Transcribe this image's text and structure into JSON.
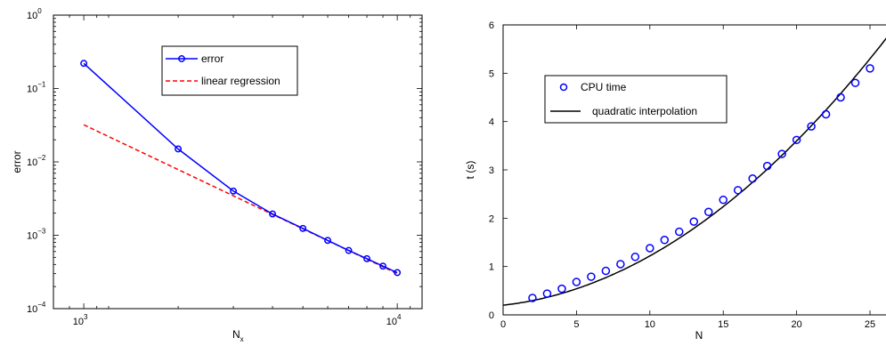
{
  "chart_data": [
    {
      "type": "line",
      "xscale": "log",
      "yscale": "log",
      "xlim": [
        800,
        12000
      ],
      "ylim": [
        0.0001,
        1
      ],
      "xticks": [
        {
          "value": 1000,
          "base": "10",
          "exp": "3"
        },
        {
          "value": 10000,
          "base": "10",
          "exp": "4"
        }
      ],
      "yticks": [
        {
          "value": 0.0001,
          "base": "10",
          "exp": "−4"
        },
        {
          "value": 0.001,
          "base": "10",
          "exp": "−3"
        },
        {
          "value": 0.01,
          "base": "10",
          "exp": "−2"
        },
        {
          "value": 0.1,
          "base": "10",
          "exp": "−1"
        },
        {
          "value": 1,
          "base": "10",
          "exp": "0"
        }
      ],
      "xlabel": {
        "main": "N",
        "sub": "x"
      },
      "ylabel": "error",
      "grid": false,
      "legend": {
        "placement": "top-center"
      },
      "series": [
        {
          "name": "error",
          "color": "#0000ff",
          "style": "solid-circle-markers",
          "x": [
            1000,
            2000,
            3000,
            4000,
            5000,
            6000,
            7000,
            8000,
            9000,
            10000
          ],
          "y": [
            0.22,
            0.015,
            0.004,
            0.00195,
            0.00124,
            0.00085,
            0.00062,
            0.00048,
            0.00038,
            0.00031
          ]
        },
        {
          "name": "linear regression",
          "color": "#ff0000",
          "style": "dashed",
          "x": [
            1000,
            10000
          ],
          "y": [
            0.032,
            0.0003
          ]
        }
      ]
    },
    {
      "type": "line",
      "xlim": [
        0,
        27
      ],
      "ylim": [
        0,
        6
      ],
      "xticks": [
        0,
        5,
        10,
        15,
        20,
        25
      ],
      "yticks": [
        0,
        1,
        2,
        3,
        4,
        5,
        6
      ],
      "xlabel": "N",
      "ylabel": "t (s)",
      "grid": false,
      "legend": {
        "placement": "top-left"
      },
      "series": [
        {
          "name": "CPU time",
          "color": "#0000ff",
          "style": "circle-markers",
          "x": [
            2,
            3,
            4,
            5,
            6,
            7,
            8,
            9,
            10,
            11,
            12,
            13,
            14,
            15,
            16,
            17,
            18,
            19,
            20,
            21,
            22,
            23,
            24,
            25
          ],
          "y": [
            0.35,
            0.44,
            0.54,
            0.68,
            0.79,
            0.91,
            1.05,
            1.2,
            1.38,
            1.55,
            1.72,
            1.93,
            2.13,
            2.38,
            2.58,
            2.82,
            3.08,
            3.33,
            3.62,
            3.9,
            4.15,
            4.5,
            4.8,
            5.1
          ]
        },
        {
          "name": "quadratic interpolation",
          "color": "#000000",
          "style": "solid",
          "fit": {
            "a": 0.0068,
            "b": 0.034,
            "c": 0.2
          },
          "x_range": [
            0,
            27
          ]
        }
      ]
    }
  ]
}
